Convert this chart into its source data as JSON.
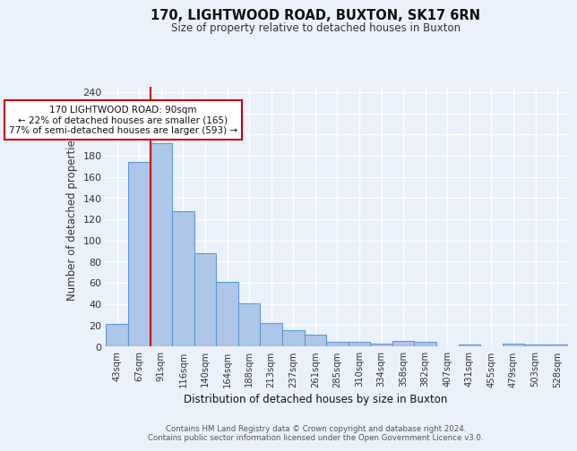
{
  "title": "170, LIGHTWOOD ROAD, BUXTON, SK17 6RN",
  "subtitle": "Size of property relative to detached houses in Buxton",
  "xlabel": "Distribution of detached houses by size in Buxton",
  "ylabel": "Number of detached properties",
  "bin_labels": [
    "43sqm",
    "67sqm",
    "91sqm",
    "116sqm",
    "140sqm",
    "164sqm",
    "188sqm",
    "213sqm",
    "237sqm",
    "261sqm",
    "285sqm",
    "310sqm",
    "334sqm",
    "358sqm",
    "382sqm",
    "407sqm",
    "431sqm",
    "455sqm",
    "479sqm",
    "503sqm",
    "528sqm"
  ],
  "bar_values": [
    21,
    174,
    192,
    128,
    88,
    61,
    41,
    22,
    15,
    11,
    4,
    4,
    3,
    5,
    4,
    0,
    2,
    0,
    3,
    2,
    2
  ],
  "bar_color": "#aec6e8",
  "bar_edge_color": "#5b9bd5",
  "property_line_index": 2,
  "property_line_color": "#cc0000",
  "annotation_text": "170 LIGHTWOOD ROAD: 90sqm\n← 22% of detached houses are smaller (165)\n77% of semi-detached houses are larger (593) →",
  "ylim": [
    0,
    245
  ],
  "yticks": [
    0,
    20,
    40,
    60,
    80,
    100,
    120,
    140,
    160,
    180,
    200,
    220,
    240
  ],
  "footnote": "Contains HM Land Registry data © Crown copyright and database right 2024.\nContains public sector information licensed under the Open Government Licence v3.0.",
  "bg_color": "#eaf1fb",
  "grid_color": "#ffffff"
}
